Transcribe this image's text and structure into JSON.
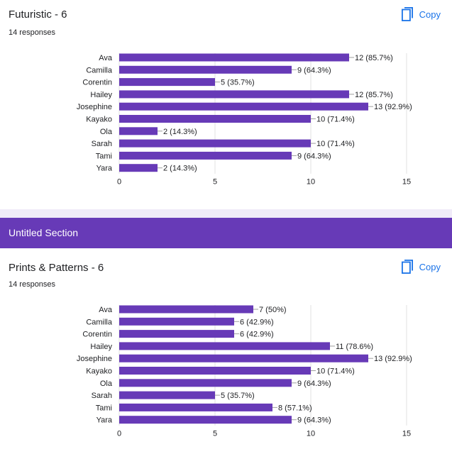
{
  "colors": {
    "bar": "#673ab7",
    "accent": "#1a73e8",
    "section": "#673ab7",
    "separator": "#f0ebf8",
    "grid": "#e0e0e0"
  },
  "copy_icon": "copy-icon",
  "question1": {
    "title": "Futuristic - 6",
    "responses": "14 responses",
    "copy_label": "Copy",
    "chart_data": {
      "type": "bar",
      "orientation": "horizontal",
      "categories": [
        "Ava",
        "Camilla",
        "Corentin",
        "Hailey",
        "Josephine",
        "Kayako",
        "Ola",
        "Sarah",
        "Tami",
        "Yara"
      ],
      "values": [
        12,
        9,
        5,
        12,
        13,
        10,
        2,
        10,
        9,
        2
      ],
      "labels": [
        "12 (85.7%)",
        "9 (64.3%)",
        "5 (35.7%)",
        "12 (85.7%)",
        "13 (92.9%)",
        "10 (71.4%)",
        "2 (14.3%)",
        "10 (71.4%)",
        "9 (64.3%)",
        "2 (14.3%)"
      ],
      "xlim": [
        0,
        15
      ],
      "ticks": [
        0,
        5,
        10,
        15
      ],
      "grid": true
    }
  },
  "section": {
    "title": "Untitled Section"
  },
  "question2": {
    "title": "Prints & Patterns - 6",
    "responses": "14 responses",
    "copy_label": "Copy",
    "chart_data": {
      "type": "bar",
      "orientation": "horizontal",
      "categories": [
        "Ava",
        "Camilla",
        "Corentin",
        "Hailey",
        "Josephine",
        "Kayako",
        "Ola",
        "Sarah",
        "Tami",
        "Yara"
      ],
      "values": [
        7,
        6,
        6,
        11,
        13,
        10,
        9,
        5,
        8,
        9
      ],
      "labels": [
        "7 (50%)",
        "6 (42.9%)",
        "6 (42.9%)",
        "11 (78.6%)",
        "13 (92.9%)",
        "10 (71.4%)",
        "9 (64.3%)",
        "5 (35.7%)",
        "8 (57.1%)",
        "9 (64.3%)"
      ],
      "xlim": [
        0,
        15
      ],
      "ticks": [
        0,
        5,
        10,
        15
      ],
      "grid": true
    }
  }
}
